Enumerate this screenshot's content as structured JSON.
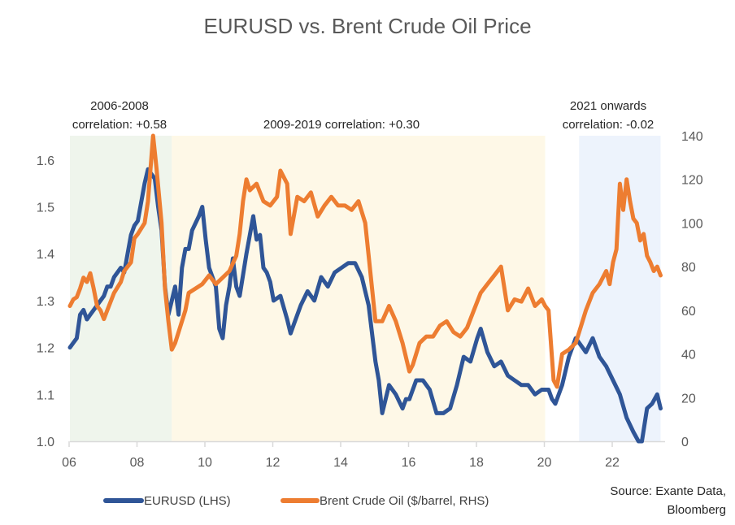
{
  "chart_data": {
    "type": "line",
    "title": "EURUSD vs. Brent Crude Oil Price",
    "xlabel": "",
    "ylabel_left": "",
    "ylabel_right": "",
    "x_range": [
      2006,
      2023.6
    ],
    "ylim_left": [
      1.0,
      1.64
    ],
    "ylim_right": [
      0,
      140
    ],
    "grid": false,
    "x_tick_labels": [
      "06",
      "08",
      "10",
      "12",
      "14",
      "16",
      "18",
      "20",
      "22"
    ],
    "x_tick_values": [
      2006,
      2008,
      2010,
      2012,
      2014,
      2016,
      2018,
      2020,
      2022
    ],
    "y_left_tick_labels": [
      "1.0",
      "1.1",
      "1.2",
      "1.3",
      "1.4",
      "1.5",
      "1.6"
    ],
    "y_left_tick_values": [
      1.0,
      1.1,
      1.2,
      1.3,
      1.4,
      1.5,
      1.6
    ],
    "y_right_tick_labels": [
      "0",
      "20",
      "40",
      "60",
      "80",
      "100",
      "120",
      "140"
    ],
    "y_right_tick_values": [
      0,
      20,
      40,
      60,
      80,
      100,
      120,
      140
    ],
    "regions": [
      {
        "label_line1": "2006-2008",
        "label_line2": "correlation: +0.58",
        "start": 2006,
        "end": 2009,
        "color": "#eff5ec"
      },
      {
        "label_line1": "2009-2019 correlation: +0.30",
        "label_line2": "",
        "start": 2009,
        "end": 2020,
        "color": "#fef8e7"
      },
      {
        "label_line1": "2021 onwards",
        "label_line2": "correlation: -0.02",
        "start": 2021,
        "end": 2023.4,
        "color": "#edf3fc"
      }
    ],
    "legend_position": "bottom",
    "series": [
      {
        "name": "EURUSD (LHS)",
        "axis": "left",
        "color": "#2f5597",
        "x": [
          2006.0,
          2006.1,
          2006.2,
          2006.3,
          2006.4,
          2006.5,
          2006.6,
          2006.8,
          2007.0,
          2007.1,
          2007.2,
          2007.3,
          2007.5,
          2007.6,
          2007.8,
          2007.9,
          2008.0,
          2008.2,
          2008.3,
          2008.5,
          2008.6,
          2008.7,
          2008.8,
          2008.9,
          2009.0,
          2009.1,
          2009.2,
          2009.3,
          2009.4,
          2009.5,
          2009.6,
          2009.8,
          2009.9,
          2010.0,
          2010.1,
          2010.3,
          2010.4,
          2010.5,
          2010.6,
          2010.7,
          2010.8,
          2010.9,
          2011.0,
          2011.2,
          2011.3,
          2011.4,
          2011.5,
          2011.6,
          2011.7,
          2011.8,
          2011.9,
          2012.0,
          2012.2,
          2012.4,
          2012.5,
          2012.6,
          2012.8,
          2013.0,
          2013.2,
          2013.4,
          2013.6,
          2013.8,
          2014.0,
          2014.2,
          2014.4,
          2014.6,
          2014.8,
          2015.0,
          2015.1,
          2015.2,
          2015.4,
          2015.6,
          2015.8,
          2015.9,
          2016.0,
          2016.2,
          2016.4,
          2016.6,
          2016.8,
          2017.0,
          2017.2,
          2017.4,
          2017.6,
          2017.8,
          2018.0,
          2018.1,
          2018.3,
          2018.5,
          2018.7,
          2018.9,
          2019.1,
          2019.3,
          2019.5,
          2019.7,
          2019.9,
          2020.1,
          2020.2,
          2020.3,
          2020.5,
          2020.7,
          2020.9,
          2021.0,
          2021.2,
          2021.4,
          2021.6,
          2021.8,
          2022.0,
          2022.2,
          2022.4,
          2022.6,
          2022.75,
          2022.85,
          2023.0,
          2023.15,
          2023.3,
          2023.4
        ],
        "values": [
          1.2,
          1.21,
          1.22,
          1.27,
          1.28,
          1.26,
          1.27,
          1.29,
          1.31,
          1.33,
          1.33,
          1.35,
          1.37,
          1.36,
          1.44,
          1.46,
          1.47,
          1.55,
          1.58,
          1.56,
          1.5,
          1.45,
          1.33,
          1.27,
          1.3,
          1.33,
          1.27,
          1.37,
          1.41,
          1.41,
          1.45,
          1.48,
          1.5,
          1.43,
          1.37,
          1.33,
          1.24,
          1.22,
          1.29,
          1.33,
          1.39,
          1.33,
          1.31,
          1.4,
          1.44,
          1.48,
          1.43,
          1.44,
          1.37,
          1.36,
          1.34,
          1.3,
          1.31,
          1.26,
          1.23,
          1.25,
          1.29,
          1.32,
          1.3,
          1.35,
          1.33,
          1.36,
          1.37,
          1.38,
          1.38,
          1.35,
          1.29,
          1.17,
          1.13,
          1.06,
          1.12,
          1.1,
          1.07,
          1.09,
          1.09,
          1.13,
          1.13,
          1.11,
          1.06,
          1.06,
          1.07,
          1.12,
          1.18,
          1.17,
          1.22,
          1.24,
          1.19,
          1.16,
          1.17,
          1.14,
          1.13,
          1.12,
          1.12,
          1.1,
          1.11,
          1.11,
          1.09,
          1.08,
          1.12,
          1.18,
          1.22,
          1.21,
          1.19,
          1.22,
          1.18,
          1.16,
          1.13,
          1.1,
          1.05,
          1.02,
          1.0,
          1.0,
          1.07,
          1.08,
          1.1,
          1.07
        ]
      },
      {
        "name": "Brent Crude Oil ($/barrel, RHS)",
        "axis": "right",
        "color": "#ed7d31",
        "x": [
          2006.0,
          2006.1,
          2006.2,
          2006.3,
          2006.4,
          2006.5,
          2006.6,
          2006.7,
          2006.8,
          2006.9,
          2007.0,
          2007.1,
          2007.3,
          2007.5,
          2007.6,
          2007.8,
          2007.9,
          2008.0,
          2008.2,
          2008.3,
          2008.45,
          2008.55,
          2008.7,
          2008.8,
          2008.9,
          2009.0,
          2009.1,
          2009.2,
          2009.4,
          2009.5,
          2009.7,
          2009.9,
          2010.1,
          2010.3,
          2010.5,
          2010.7,
          2010.9,
          2011.0,
          2011.1,
          2011.2,
          2011.3,
          2011.5,
          2011.7,
          2011.9,
          2012.1,
          2012.2,
          2012.4,
          2012.5,
          2012.7,
          2012.9,
          2013.1,
          2013.3,
          2013.5,
          2013.7,
          2013.9,
          2014.1,
          2014.3,
          2014.5,
          2014.7,
          2014.9,
          2015.0,
          2015.2,
          2015.4,
          2015.6,
          2015.8,
          2016.0,
          2016.1,
          2016.3,
          2016.5,
          2016.7,
          2016.9,
          2017.1,
          2017.3,
          2017.5,
          2017.7,
          2017.9,
          2018.1,
          2018.3,
          2018.5,
          2018.7,
          2018.9,
          2019.1,
          2019.3,
          2019.5,
          2019.7,
          2019.9,
          2020.0,
          2020.1,
          2020.25,
          2020.35,
          2020.5,
          2020.7,
          2020.9,
          2021.0,
          2021.2,
          2021.4,
          2021.6,
          2021.8,
          2021.9,
          2022.0,
          2022.1,
          2022.2,
          2022.3,
          2022.4,
          2022.5,
          2022.6,
          2022.7,
          2022.8,
          2022.9,
          2023.0,
          2023.1,
          2023.2,
          2023.3,
          2023.4
        ],
        "values": [
          62,
          65,
          66,
          70,
          75,
          73,
          77,
          70,
          62,
          60,
          56,
          60,
          68,
          73,
          78,
          82,
          93,
          95,
          100,
          110,
          140,
          125,
          100,
          70,
          55,
          42,
          45,
          50,
          60,
          68,
          70,
          72,
          76,
          72,
          75,
          78,
          85,
          95,
          110,
          120,
          115,
          118,
          110,
          108,
          112,
          124,
          118,
          95,
          112,
          110,
          114,
          103,
          108,
          112,
          108,
          108,
          106,
          110,
          100,
          70,
          55,
          55,
          62,
          55,
          45,
          32,
          35,
          45,
          48,
          48,
          53,
          55,
          50,
          48,
          52,
          60,
          68,
          72,
          76,
          80,
          60,
          65,
          64,
          70,
          62,
          65,
          62,
          60,
          28,
          25,
          40,
          42,
          45,
          50,
          60,
          68,
          72,
          78,
          72,
          82,
          88,
          118,
          106,
          120,
          110,
          102,
          100,
          92,
          95,
          85,
          82,
          78,
          80,
          76
        ]
      }
    ],
    "annotations": {
      "source_line1": "Source: Exante Data,",
      "source_line2": "Bloomberg"
    }
  }
}
